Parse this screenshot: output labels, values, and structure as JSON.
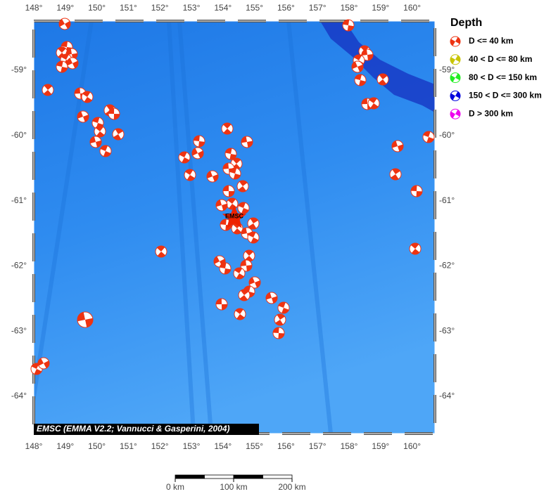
{
  "map": {
    "lon_labels": [
      "148°",
      "149°",
      "150°",
      "151°",
      "152°",
      "153°",
      "154°",
      "155°",
      "156°",
      "157°",
      "158°",
      "159°",
      "160°"
    ],
    "lat_labels": [
      "-59°",
      "-60°",
      "-61°",
      "-62°",
      "-63°",
      "-64°"
    ],
    "epicenter_label": "EMSC",
    "credit": "EMSC (EMMA V2.2; Vannucci & Gasperini, 2004)"
  },
  "legend": {
    "title": "Depth",
    "items": [
      {
        "label": "D <= 40 km",
        "color": "#ee3311"
      },
      {
        "label": "40 < D <= 80 km",
        "color": "#c8c400"
      },
      {
        "label": "80 < D <= 150 km",
        "color": "#22ee22"
      },
      {
        "label": "150 < D <= 300 km",
        "color": "#0000dd"
      },
      {
        "label": "D > 300 km",
        "color": "#ee00ee"
      }
    ]
  },
  "scale_bar": {
    "labels": [
      "0 km",
      "100 km",
      "200 km"
    ]
  }
}
